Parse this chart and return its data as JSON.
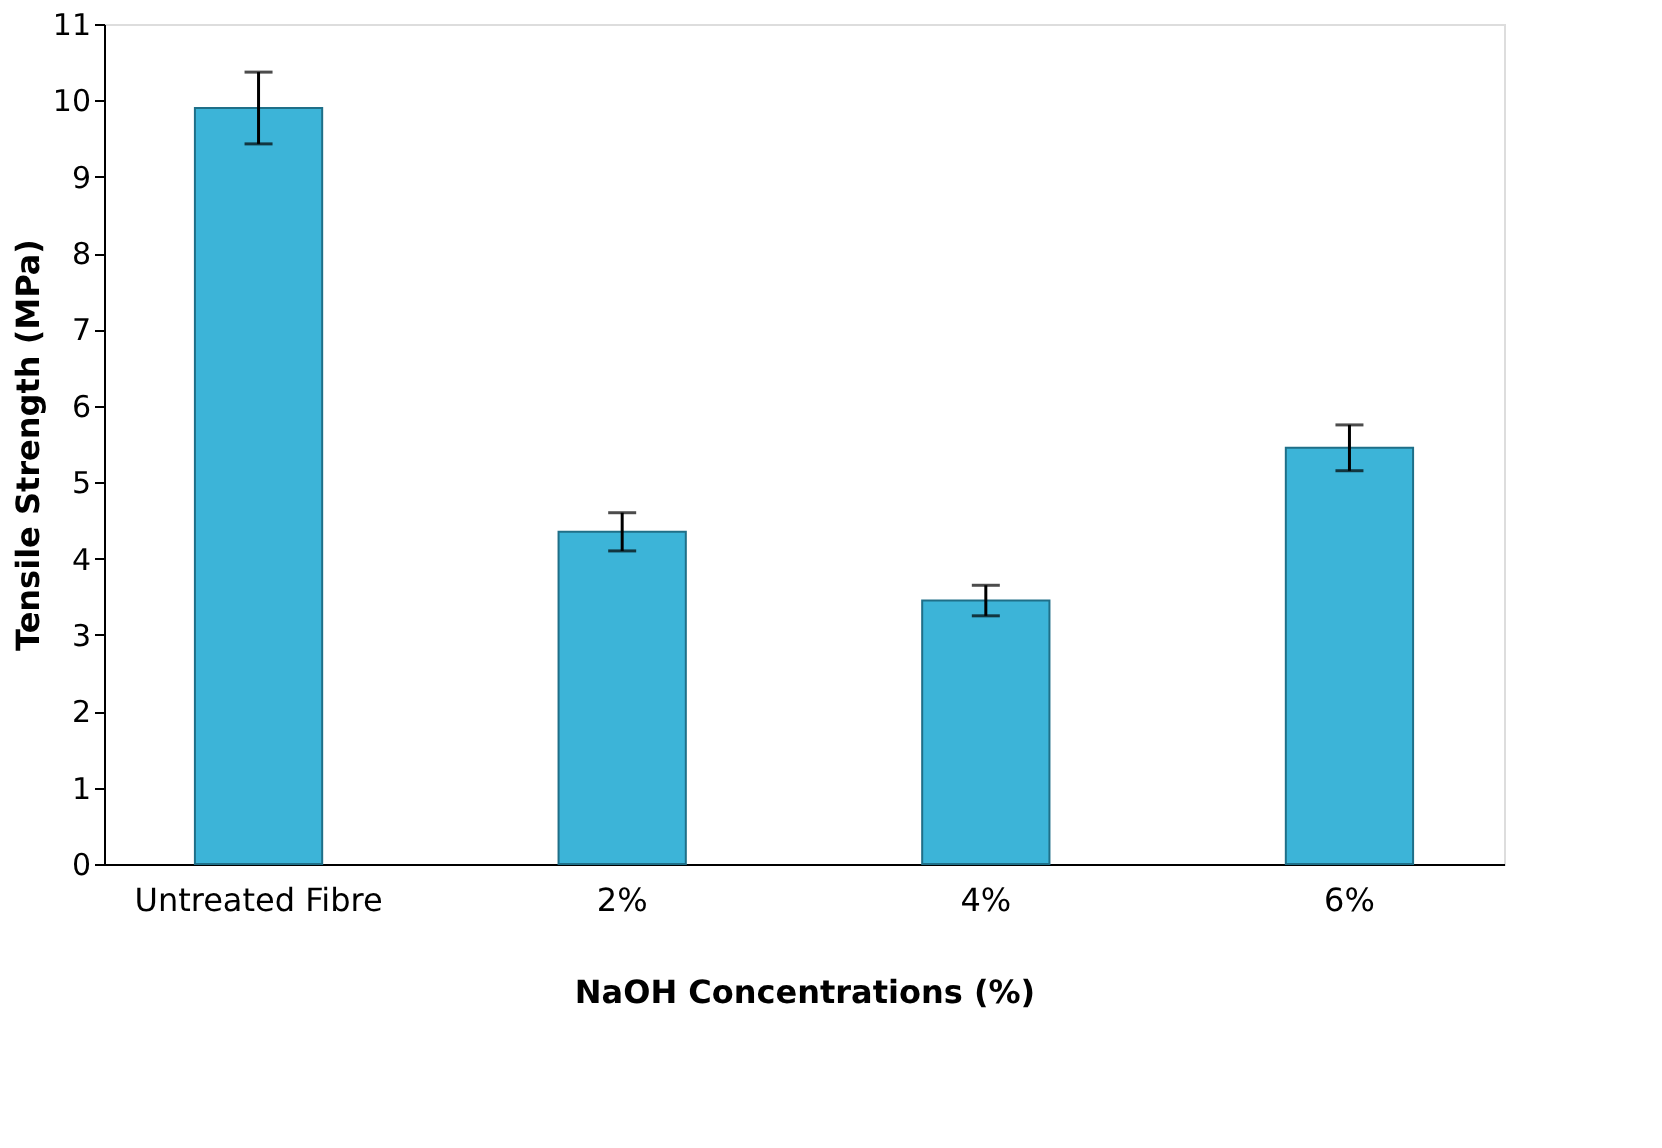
{
  "chart_data": {
    "type": "bar",
    "xlabel": "NaOH Concentrations (%)",
    "ylabel": "Tensile Strength (MPa)",
    "categories": [
      "Untreated Fibre",
      "2%",
      "4%",
      "6%"
    ],
    "values": [
      9.9,
      4.35,
      3.45,
      5.45
    ],
    "errors": [
      0.47,
      0.25,
      0.2,
      0.3
    ],
    "color": "#3cb4d8",
    "ylim": [
      0,
      11
    ],
    "yticks": [
      0,
      1,
      2,
      3,
      4,
      5,
      6,
      7,
      8,
      9,
      10,
      11
    ],
    "grid": false
  }
}
